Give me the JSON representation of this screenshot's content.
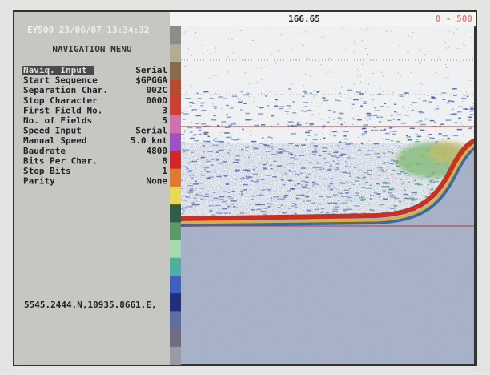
{
  "header": {
    "instrument": "EY500 23/06/07 13:34:32",
    "menu_title": "NAVIGATION MENU"
  },
  "menu": {
    "items": [
      {
        "label": "Naviq. Input",
        "value": "Serial"
      },
      {
        "label": "Start Sequence",
        "value": "$GPGGA"
      },
      {
        "label": "Separation Char.",
        "value": "002C"
      },
      {
        "label": "Stop Character",
        "value": "000D"
      },
      {
        "label": "First Field No.",
        "value": "3"
      },
      {
        "label": "No. of Fields",
        "value": "5"
      },
      {
        "label": "Speed Input",
        "value": "Serial"
      },
      {
        "label": "Manual Speed",
        "value": "5.0 knt"
      },
      {
        "label": "Baudrate",
        "value": "4800"
      },
      {
        "label": "Bits Per Char.",
        "value": "8"
      },
      {
        "label": "Stop Bits",
        "value": "1"
      },
      {
        "label": "Parity",
        "value": "None"
      }
    ]
  },
  "nmea": "5545.2444,N,10935.8661,E,",
  "echogram": {
    "depth_marker": "166.65",
    "range": "0 - 500"
  }
}
